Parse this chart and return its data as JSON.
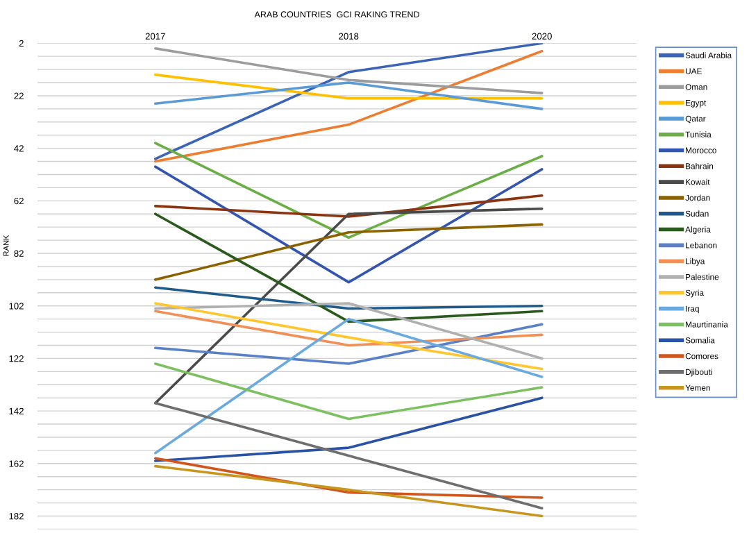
{
  "chart_data": {
    "type": "line",
    "title": "ARAB COUNTRIES  GCI RAKING TREND",
    "ylabel": "RANK",
    "categories": [
      "2017",
      "2018",
      "2020"
    ],
    "ylim": [
      187,
      2
    ],
    "yticks": [
      2,
      {
        "value": 7,
        "label": null
      },
      {
        "value": 12,
        "label": null
      },
      {
        "value": 17,
        "label": null
      },
      22,
      {
        "value": 27,
        "label": null
      },
      {
        "value": 32,
        "label": null
      },
      {
        "value": 37,
        "label": null
      },
      42,
      {
        "value": 47,
        "label": null
      },
      {
        "value": 52,
        "label": null
      },
      {
        "value": 57,
        "label": null
      },
      62,
      {
        "value": 67,
        "label": null
      },
      {
        "value": 72,
        "label": null
      },
      {
        "value": 77,
        "label": null
      },
      82,
      {
        "value": 87,
        "label": null
      },
      {
        "value": 92,
        "label": null
      },
      {
        "value": 97,
        "label": null
      },
      102,
      {
        "value": 107,
        "label": null
      },
      {
        "value": 112,
        "label": null
      },
      {
        "value": 117,
        "label": null
      },
      122,
      {
        "value": 127,
        "label": null
      },
      {
        "value": 132,
        "label": null
      },
      {
        "value": 137,
        "label": null
      },
      142,
      {
        "value": 147,
        "label": null
      },
      {
        "value": 152,
        "label": null
      },
      {
        "value": 157,
        "label": null
      },
      162,
      {
        "value": 167,
        "label": null
      },
      {
        "value": 172,
        "label": null
      },
      {
        "value": 177,
        "label": null
      },
      182,
      {
        "value": 187,
        "label": null
      }
    ],
    "grid": "y",
    "legend": "right",
    "marker": "none",
    "line_style": "solid",
    "series": [
      {
        "name": "Saudi Arabia",
        "color": "#3b64b8",
        "values": [
          46,
          13,
          2
        ]
      },
      {
        "name": "UAE",
        "color": "#ed7d31",
        "values": [
          47,
          33,
          5
        ]
      },
      {
        "name": "Oman",
        "color": "#9c9c9c",
        "values": [
          4,
          16,
          21
        ]
      },
      {
        "name": "Egypt",
        "color": "#ffc000",
        "values": [
          14,
          23,
          23
        ]
      },
      {
        "name": "Qatar",
        "color": "#5b9bd5",
        "values": [
          25,
          17,
          27
        ]
      },
      {
        "name": "Tunisia",
        "color": "#6aae45",
        "values": [
          40,
          76,
          45
        ]
      },
      {
        "name": "Morocco",
        "color": "#3355b0",
        "values": [
          49,
          93,
          50
        ]
      },
      {
        "name": "Bahrain",
        "color": "#8b3510",
        "values": [
          64,
          68,
          60
        ]
      },
      {
        "name": "Kowait",
        "color": "#4a4a4a",
        "values": [
          139,
          67,
          65
        ]
      },
      {
        "name": "Jordan",
        "color": "#8a6200",
        "values": [
          92,
          74,
          71
        ]
      },
      {
        "name": "Sudan",
        "color": "#1f5a8c",
        "values": [
          95,
          103,
          102
        ]
      },
      {
        "name": "Algeria",
        "color": "#2a5a1e",
        "values": [
          67,
          108,
          104
        ]
      },
      {
        "name": "Lebanon",
        "color": "#5a80c8",
        "values": [
          118,
          124,
          109
        ]
      },
      {
        "name": "Libya",
        "color": "#f18f55",
        "values": [
          104,
          117,
          113
        ]
      },
      {
        "name": "Palestine",
        "color": "#b0b0b0",
        "values": [
          103,
          101,
          122
        ]
      },
      {
        "name": "Syria",
        "color": "#ffc72e",
        "values": [
          101,
          114,
          126
        ]
      },
      {
        "name": "Iraq",
        "color": "#6aaadf",
        "values": [
          158,
          107,
          129
        ]
      },
      {
        "name": "Maurtinania",
        "color": "#7cc060",
        "values": [
          124,
          145,
          133
        ]
      },
      {
        "name": "Somalia",
        "color": "#2a52a6",
        "values": [
          161,
          156,
          137
        ]
      },
      {
        "name": "Comores",
        "color": "#d0561c",
        "values": [
          160,
          173,
          175
        ]
      },
      {
        "name": "Djibouti",
        "color": "#6e6e6e",
        "values": [
          139,
          159,
          179
        ]
      },
      {
        "name": "Yemen",
        "color": "#c8961e",
        "values": [
          163,
          172,
          182
        ]
      }
    ]
  }
}
